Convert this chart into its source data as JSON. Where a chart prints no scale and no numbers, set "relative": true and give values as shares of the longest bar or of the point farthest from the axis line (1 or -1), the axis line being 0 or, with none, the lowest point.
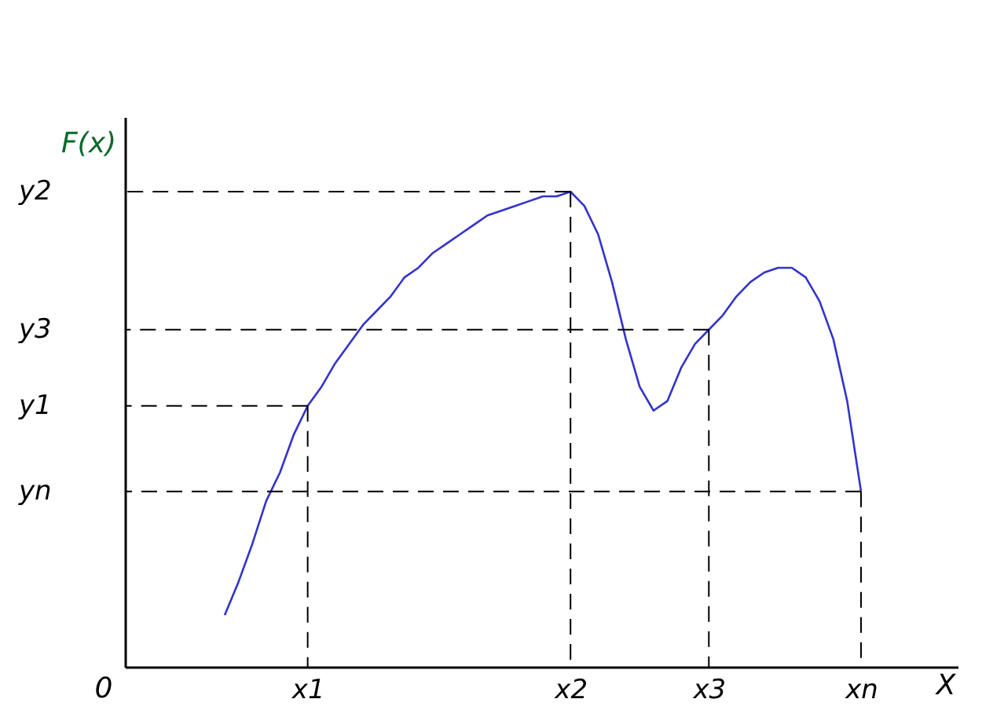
{
  "chart_data": {
    "type": "line",
    "relative": true,
    "xlabel": "X",
    "ylabel": "F(x)",
    "categories": [
      null,
      null,
      null,
      null,
      null,
      null,
      "x1",
      null,
      null,
      null,
      null,
      null,
      null,
      null,
      null,
      null,
      null,
      null,
      null,
      null,
      null,
      null,
      null,
      null,
      null,
      "x2",
      null,
      null,
      null,
      null,
      null,
      null,
      null,
      null,
      null,
      "x3",
      null,
      null,
      null,
      null,
      null,
      null,
      null,
      null,
      null,
      null,
      "xn"
    ],
    "series": [
      {
        "color": "#3333cc",
        "values": [
          0.11,
          0.18,
          0.26,
          0.35,
          0.41,
          0.49,
          0.55,
          0.59,
          0.64,
          0.68,
          0.72,
          0.75,
          0.78,
          0.82,
          0.84,
          0.87,
          0.89,
          0.91,
          0.93,
          0.95,
          0.96,
          0.97,
          0.98,
          0.99,
          0.99,
          1,
          0.97,
          0.91,
          0.81,
          0.69,
          0.59,
          0.54,
          0.56,
          0.63,
          0.68,
          0.71,
          0.74,
          0.78,
          0.81,
          0.83,
          0.84,
          0.84,
          0.82,
          0.77,
          0.69,
          0.56,
          0.37
        ]
      }
    ],
    "ref_lines": [
      {
        "axis": "y",
        "value": 1,
        "label": "y2",
        "line_style": "dashed"
      },
      {
        "axis": "y",
        "value": 0.71,
        "label": "y3",
        "line_style": "dashed"
      },
      {
        "axis": "y",
        "value": 0.55,
        "label": "y1",
        "line_style": "dashed"
      },
      {
        "axis": "y",
        "value": 0.37,
        "label": "yn",
        "line_style": "dashed"
      },
      {
        "axis": "x",
        "value": "x1",
        "line_style": "dashed"
      },
      {
        "axis": "x",
        "value": "x2",
        "line_style": "dashed"
      },
      {
        "axis": "x",
        "value": "x3",
        "line_style": "dashed"
      },
      {
        "axis": "x",
        "value": "xn",
        "line_style": "dashed"
      }
    ],
    "annotations": [
      "0"
    ],
    "grid": false,
    "marker": "none",
    "line_style": "solid"
  }
}
